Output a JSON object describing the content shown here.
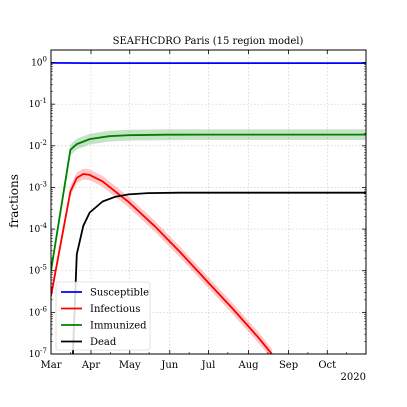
{
  "chart_data": {
    "type": "line",
    "title": "SEAFHCDRO Paris (15 region model)",
    "ylabel": "fractions",
    "xlabel": "",
    "x_year_label": "2020",
    "yscale": "log",
    "ylim": [
      1e-07,
      2
    ],
    "x_months": [
      "Mar",
      "Apr",
      "May",
      "Jun",
      "Jul",
      "Aug",
      "Sep",
      "Oct"
    ],
    "xlim_days": [
      0,
      244
    ],
    "y_ticks": [
      {
        "e": 0,
        "label": "10^0"
      },
      {
        "e": -1,
        "label": "10^-1"
      },
      {
        "e": -2,
        "label": "10^-2"
      },
      {
        "e": -3,
        "label": "10^-3"
      },
      {
        "e": -4,
        "label": "10^-4"
      },
      {
        "e": -5,
        "label": "10^-5"
      },
      {
        "e": -6,
        "label": "10^-6"
      },
      {
        "e": -7,
        "label": "10^-7"
      }
    ],
    "grid": true,
    "legend_position": "lower-left",
    "series": [
      {
        "name": "Susceptible",
        "color": "#0000ff",
        "band": false,
        "points": [
          [
            0,
            0.98
          ],
          [
            15,
            0.975
          ],
          [
            30,
            0.97
          ],
          [
            60,
            0.97
          ],
          [
            120,
            0.969
          ],
          [
            244,
            0.969
          ]
        ]
      },
      {
        "name": "Infectious",
        "color": "#ff0000",
        "band": true,
        "points": [
          [
            0,
            2.5e-06
          ],
          [
            15,
            0.0008
          ],
          [
            20,
            0.0017
          ],
          [
            25,
            0.0021
          ],
          [
            30,
            0.002
          ],
          [
            40,
            0.0014
          ],
          [
            60,
            0.00045
          ],
          [
            80,
            0.00012
          ],
          [
            100,
            2.8e-05
          ],
          [
            120,
            6e-06
          ],
          [
            140,
            1.3e-06
          ],
          [
            160,
            2.6e-07
          ],
          [
            171,
            1e-07
          ]
        ]
      },
      {
        "name": "Immunized",
        "color": "#008000",
        "band": true,
        "points": [
          [
            0,
            1e-05
          ],
          [
            15,
            0.008
          ],
          [
            20,
            0.011
          ],
          [
            30,
            0.0145
          ],
          [
            45,
            0.017
          ],
          [
            60,
            0.018
          ],
          [
            90,
            0.0185
          ],
          [
            120,
            0.0186
          ],
          [
            244,
            0.0186
          ]
        ]
      },
      {
        "name": "Dead",
        "color": "#000000",
        "band": false,
        "points": [
          [
            17,
            1e-07
          ],
          [
            20,
            2.5e-05
          ],
          [
            25,
            0.00012
          ],
          [
            30,
            0.00025
          ],
          [
            40,
            0.00046
          ],
          [
            50,
            0.0006
          ],
          [
            60,
            0.00068
          ],
          [
            75,
            0.00073
          ],
          [
            100,
            0.00075
          ],
          [
            244,
            0.00075
          ]
        ]
      }
    ]
  }
}
